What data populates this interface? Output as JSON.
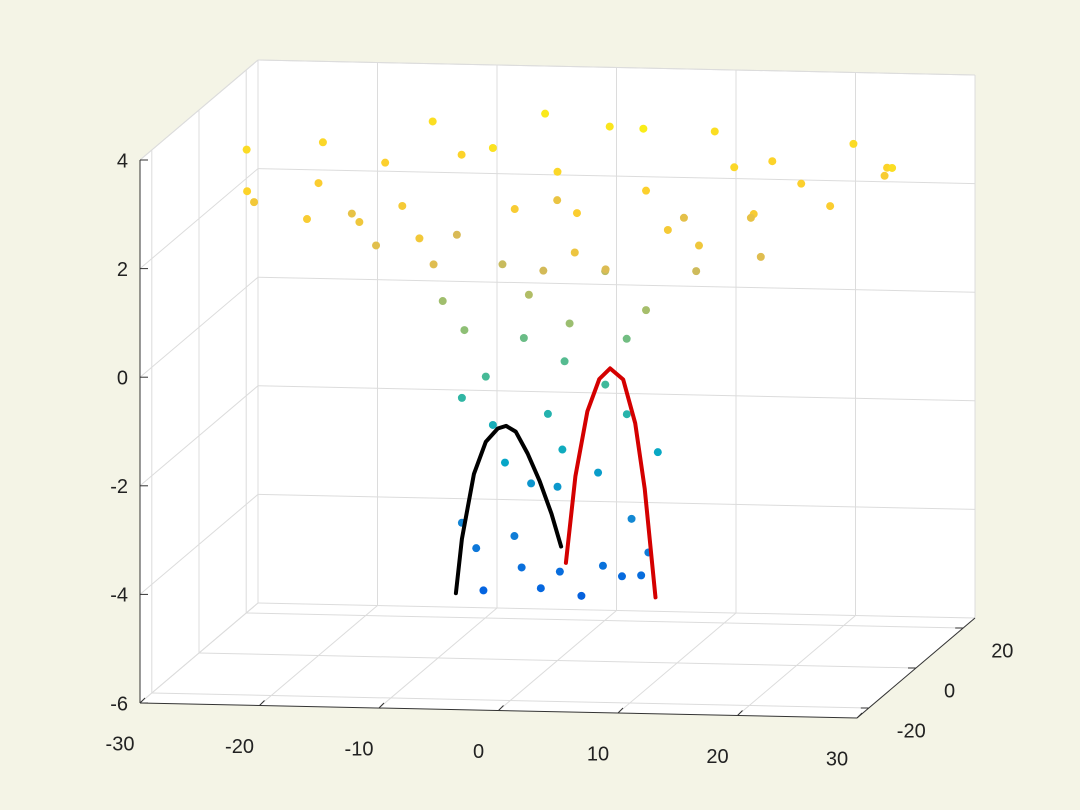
{
  "chart_data": {
    "type": "scatter3d",
    "xlim": [
      -30,
      30
    ],
    "ylim": [
      -25,
      25
    ],
    "zlim": [
      -6,
      4
    ],
    "xticks": [
      -30,
      -20,
      -10,
      0,
      10,
      20,
      30
    ],
    "yticks": [
      -20,
      0,
      20
    ],
    "zticks": [
      -6,
      -4,
      -2,
      0,
      2,
      4
    ],
    "grid": true,
    "colormap": "parula",
    "scatter": {
      "x": [
        -27,
        -24,
        -22,
        -20,
        -18,
        -16,
        -14,
        -12,
        -10,
        -8,
        -6,
        -4,
        -2,
        0,
        2,
        4,
        6,
        8,
        10,
        12,
        14,
        16,
        18,
        20,
        22,
        24,
        26,
        28,
        -25,
        -15,
        5,
        15,
        25,
        -18,
        -14,
        -10,
        -8,
        -5,
        -2,
        0,
        3,
        6,
        9,
        12,
        15,
        18,
        -10,
        -7,
        -4,
        -2,
        0,
        2,
        5,
        8,
        -6,
        4,
        -8,
        -6,
        -4,
        -1,
        1,
        3,
        6,
        8,
        0,
        -3,
        -8,
        -7,
        -6,
        -4,
        -3,
        -1,
        0,
        2,
        4,
        5,
        7,
        8,
        6
      ],
      "y": [
        5,
        -10,
        12,
        0,
        -15,
        8,
        18,
        -5,
        10,
        -18,
        3,
        15,
        -8,
        0,
        12,
        -12,
        6,
        -3,
        16,
        -14,
        4,
        10,
        -8,
        2,
        14,
        -6,
        8,
        0,
        -2,
        -8,
        -18,
        -16,
        12,
        4,
        -6,
        8,
        -12,
        2,
        10,
        -6,
        5,
        -10,
        8,
        -2,
        6,
        -5,
        2,
        -4,
        6,
        -2,
        3,
        -5,
        4,
        -3,
        0,
        0,
        0,
        3,
        -2,
        1,
        -3,
        2,
        -1,
        2,
        0,
        4,
        0,
        1,
        -1,
        2,
        0,
        -2,
        1,
        0,
        -1,
        2,
        0,
        -2,
        1
      ],
      "z": [
        3.1,
        2.9,
        3.0,
        2.7,
        2.6,
        2.8,
        3.2,
        2.5,
        2.9,
        2.4,
        3.3,
        3.5,
        2.6,
        3.0,
        3.4,
        2.7,
        3.6,
        2.8,
        3.2,
        2.5,
        3.0,
        2.9,
        2.6,
        2.8,
        3.1,
        2.7,
        2.9,
        3.2,
        2.4,
        2.3,
        2.2,
        2.3,
        2.6,
        2.0,
        1.8,
        1.5,
        1.7,
        1.2,
        2.1,
        1.4,
        1.0,
        1.6,
        1.9,
        1.3,
        2.0,
        1.7,
        0.5,
        0.2,
        -0.3,
        0.8,
        -0.6,
        0.4,
        -0.2,
        0.6,
        -0.8,
        -0.9,
        -1.2,
        -1.8,
        -2.3,
        -1.5,
        -2.0,
        -2.6,
        -1.4,
        -2.2,
        -2.8,
        -2.9,
        -3.5,
        -4.0,
        -4.7,
        -3.8,
        -4.3,
        -4.6,
        -4.4,
        -4.8,
        -4.2,
        -4.5,
        -4.4,
        -3.9,
        -3.4
      ]
    },
    "lines": [
      {
        "color": "#000000",
        "x": [
          -8.5,
          -8,
          -7,
          -6,
          -5,
          -4.3,
          -3.5,
          -2.5,
          -1.5,
          -0.5,
          0.3
        ],
        "y": [
          0,
          0,
          0,
          0,
          0,
          0,
          0,
          0,
          0,
          0,
          0
        ],
        "z": [
          -4.8,
          -3.8,
          -2.6,
          -2.0,
          -1.75,
          -1.7,
          -1.8,
          -2.2,
          -2.7,
          -3.3,
          -3.9
        ]
      },
      {
        "color": "#d40000",
        "x": [
          0.7,
          1.5,
          2.5,
          3.5,
          4.4,
          5.5,
          6.5,
          7.3,
          8.2
        ],
        "y": [
          0,
          0,
          0,
          0,
          0,
          0,
          0,
          0,
          0
        ],
        "z": [
          -4.2,
          -2.6,
          -1.4,
          -0.8,
          -0.6,
          -0.8,
          -1.6,
          -2.8,
          -4.8
        ]
      }
    ]
  }
}
